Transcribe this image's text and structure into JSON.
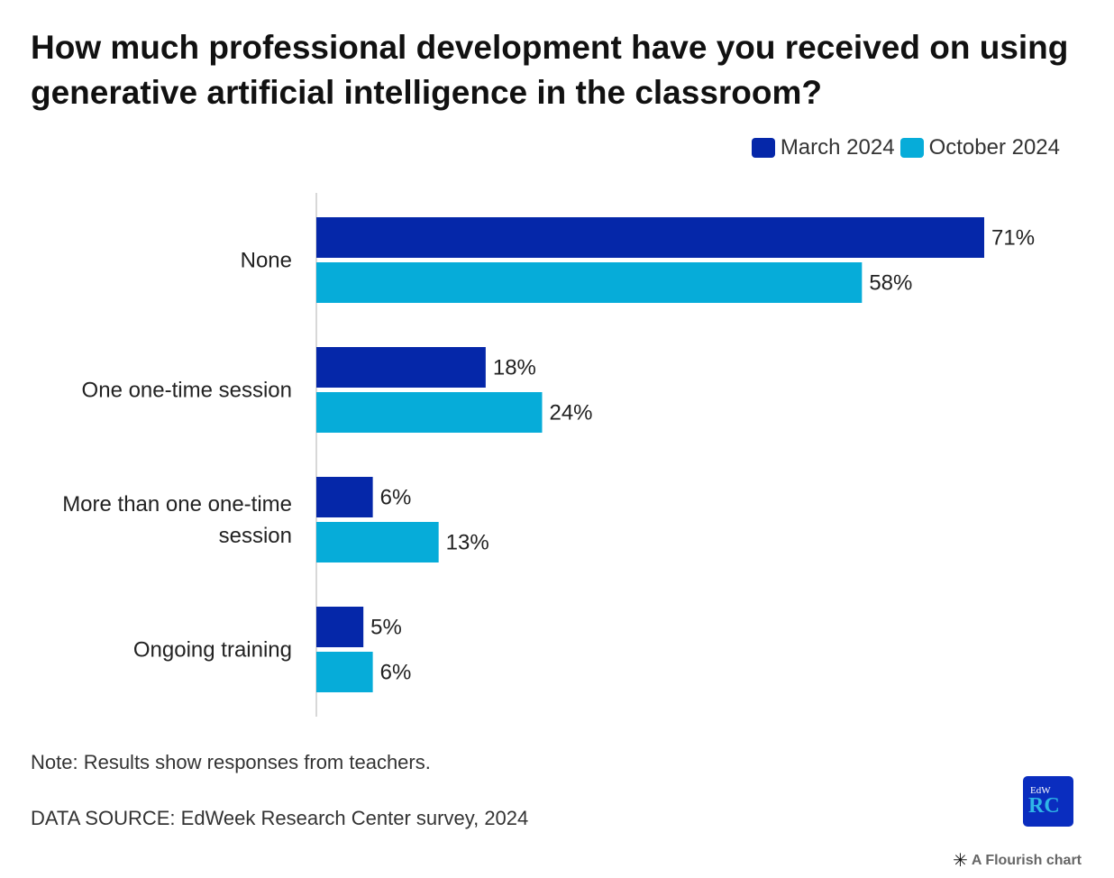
{
  "title": "How much professional development have you received on using generative artificial intelligence in the classroom?",
  "legend": [
    {
      "label": "March 2024",
      "color": "#0527a9"
    },
    {
      "label": "October 2024",
      "color": "#06acd9"
    }
  ],
  "chart_data": {
    "type": "bar",
    "orientation": "horizontal",
    "categories": [
      [
        "None"
      ],
      [
        "One one-time session"
      ],
      [
        "More than one one-time",
        "session"
      ],
      [
        "Ongoing training"
      ]
    ],
    "series": [
      {
        "name": "March 2024",
        "color": "#0527a9",
        "values": [
          71,
          18,
          6,
          5
        ]
      },
      {
        "name": "October 2024",
        "color": "#06acd9",
        "values": [
          58,
          24,
          13,
          6
        ]
      }
    ],
    "value_suffix": "%",
    "xlim": [
      0,
      71
    ],
    "legend_position": "top-right",
    "grid": false
  },
  "note": "Note: Results show responses from teachers.",
  "source": "DATA SOURCE: EdWeek Research Center survey, 2024",
  "logo": {
    "top": "EdW",
    "bottom": "RC"
  },
  "attribution": "A Flourish chart"
}
